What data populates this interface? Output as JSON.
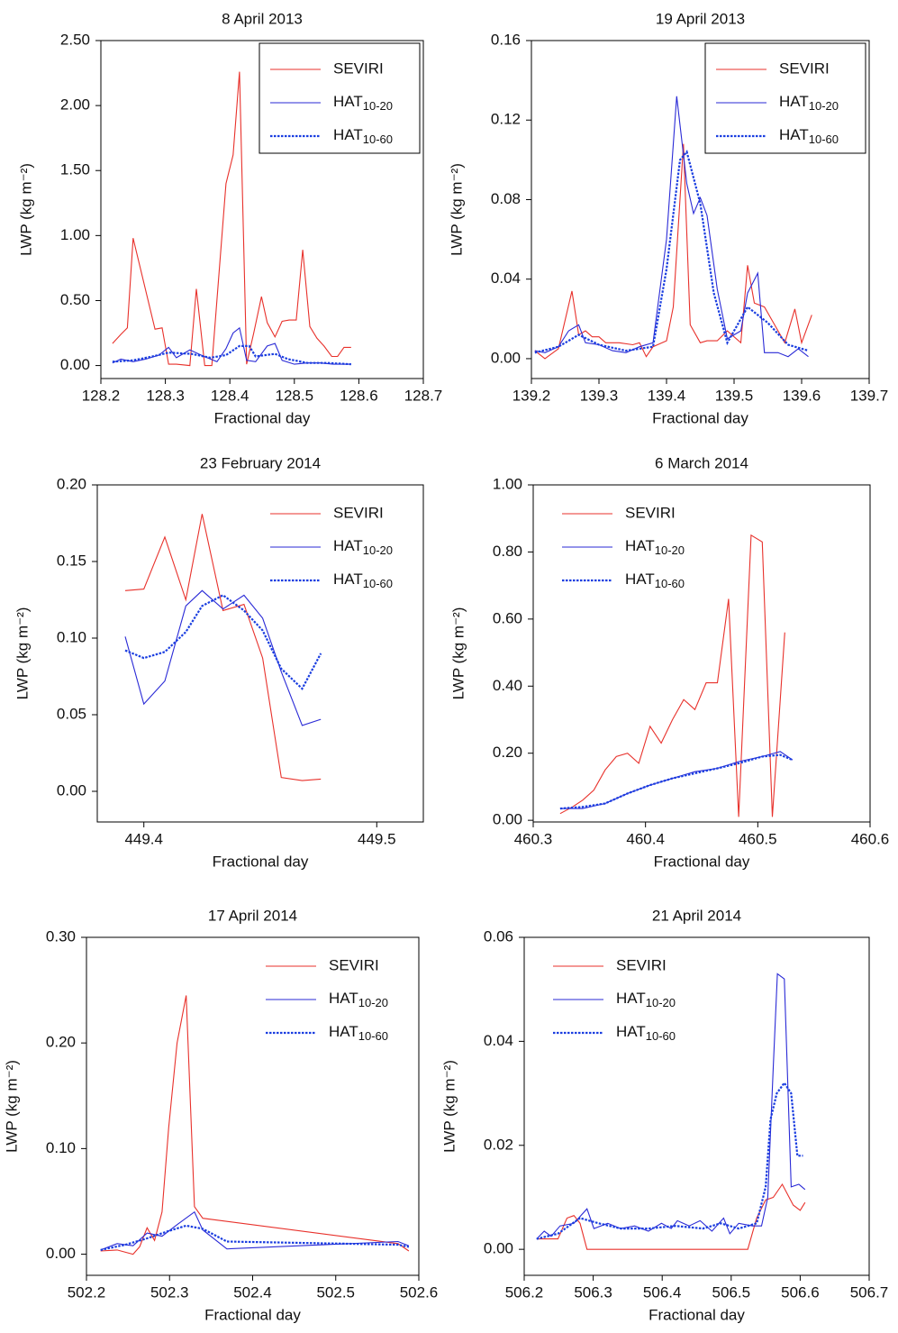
{
  "chart_data": [
    {
      "type": "line",
      "title": "8 April 2013",
      "xlabel": "Fractional day",
      "ylabel": "LWP (kg m⁻²)",
      "xlim": [
        128.2,
        128.7
      ],
      "xticks": [
        128.2,
        128.3,
        128.4,
        128.5,
        128.6,
        128.7
      ],
      "ylim": [
        -0.1,
        2.5
      ],
      "yticks": [
        {
          "value": 0,
          "label": "0.00"
        },
        {
          "value": 0.5,
          "label": "0.50"
        },
        {
          "value": 1,
          "label": "1.00"
        },
        {
          "value": 1.5,
          "label": "1.50"
        },
        {
          "value": 2,
          "label": "2.00"
        },
        {
          "value": 2.5,
          "label": "2.50"
        }
      ],
      "legend": "upper right",
      "legend_frame": true,
      "series": [
        {
          "name": "SEVIRI",
          "color": "#e8312b",
          "line_style": "solid",
          "x": [
            128.218,
            128.231,
            128.241,
            128.25,
            128.284,
            128.295,
            128.305,
            128.317,
            128.338,
            128.348,
            128.361,
            128.372,
            128.394,
            128.405,
            128.415,
            128.426,
            128.437,
            128.449,
            128.458,
            128.47,
            128.481,
            128.492,
            128.503,
            128.513,
            128.524,
            128.535,
            128.546,
            128.558,
            128.567,
            128.577,
            128.588
          ],
          "values": [
            0.17,
            0.24,
            0.29,
            0.98,
            0.28,
            0.29,
            0.01,
            0.01,
            0.0,
            0.59,
            0.0,
            0.0,
            1.4,
            1.62,
            2.26,
            0.01,
            0.25,
            0.53,
            0.33,
            0.22,
            0.34,
            0.35,
            0.35,
            0.89,
            0.3,
            0.21,
            0.15,
            0.07,
            0.07,
            0.14,
            0.14
          ]
        },
        {
          "name": "HAT10-20",
          "color": "#2a2ad6",
          "line_style": "solid",
          "x": [
            128.218,
            128.231,
            128.25,
            128.27,
            128.29,
            128.305,
            128.317,
            128.338,
            128.36,
            128.38,
            128.394,
            128.405,
            128.415,
            128.426,
            128.44,
            128.458,
            128.47,
            128.481,
            128.5,
            128.52,
            128.54,
            128.56,
            128.588
          ],
          "values": [
            0.02,
            0.05,
            0.03,
            0.05,
            0.08,
            0.14,
            0.06,
            0.12,
            0.07,
            0.03,
            0.13,
            0.25,
            0.29,
            0.04,
            0.03,
            0.15,
            0.17,
            0.04,
            0.01,
            0.02,
            0.02,
            0.01,
            0.01
          ]
        },
        {
          "name": "HAT10-60",
          "color": "#1a3ee0",
          "line_style": "dotted",
          "x": [
            128.218,
            128.25,
            128.28,
            128.305,
            128.34,
            128.37,
            128.394,
            128.415,
            128.43,
            128.44,
            128.47,
            128.49,
            128.52,
            128.55,
            128.588
          ],
          "values": [
            0.03,
            0.04,
            0.07,
            0.1,
            0.09,
            0.06,
            0.08,
            0.15,
            0.15,
            0.07,
            0.09,
            0.05,
            0.02,
            0.02,
            0.01
          ]
        }
      ]
    },
    {
      "type": "line",
      "title": "19 April 2013",
      "xlabel": "Fractional day",
      "ylabel": "LWP (kg m⁻²)",
      "xlim": [
        139.2,
        139.7
      ],
      "xticks": [
        139.2,
        139.3,
        139.4,
        139.5,
        139.6,
        139.7
      ],
      "ylim": [
        -0.01,
        0.16
      ],
      "yticks": [
        {
          "value": 0,
          "label": "0.00"
        },
        0.04,
        0.08,
        0.12,
        0.16
      ],
      "legend": "upper right",
      "legend_frame": true,
      "series": [
        {
          "name": "SEVIRI",
          "color": "#e8312b",
          "line_style": "solid",
          "x": [
            139.205,
            139.22,
            139.24,
            139.26,
            139.27,
            139.28,
            139.29,
            139.3,
            139.31,
            139.33,
            139.35,
            139.36,
            139.37,
            139.38,
            139.4,
            139.41,
            139.425,
            139.435,
            139.45,
            139.46,
            139.475,
            139.49,
            139.51,
            139.52,
            139.53,
            139.545,
            139.56,
            139.575,
            139.59,
            139.6,
            139.615
          ],
          "values": [
            0.004,
            0.0,
            0.005,
            0.034,
            0.012,
            0.014,
            0.011,
            0.011,
            0.008,
            0.008,
            0.007,
            0.008,
            0.001,
            0.006,
            0.009,
            0.026,
            0.108,
            0.017,
            0.008,
            0.009,
            0.009,
            0.014,
            0.008,
            0.047,
            0.028,
            0.026,
            0.017,
            0.008,
            0.025,
            0.008,
            0.022
          ]
        },
        {
          "name": "HAT10-20",
          "color": "#2a2ad6",
          "line_style": "solid",
          "x": [
            139.205,
            139.22,
            139.24,
            139.255,
            139.27,
            139.28,
            139.3,
            139.32,
            139.34,
            139.36,
            139.38,
            139.4,
            139.415,
            139.43,
            139.44,
            139.45,
            139.46,
            139.475,
            139.49,
            139.51,
            139.52,
            139.535,
            139.545,
            139.565,
            139.58,
            139.595,
            139.61
          ],
          "values": [
            0.004,
            0.003,
            0.006,
            0.014,
            0.017,
            0.008,
            0.007,
            0.004,
            0.003,
            0.006,
            0.008,
            0.06,
            0.132,
            0.088,
            0.073,
            0.081,
            0.072,
            0.035,
            0.01,
            0.014,
            0.033,
            0.043,
            0.003,
            0.003,
            0.001,
            0.005,
            0.001
          ]
        },
        {
          "name": "HAT10-60",
          "color": "#1a3ee0",
          "line_style": "dotted",
          "x": [
            139.205,
            139.24,
            139.27,
            139.3,
            139.34,
            139.38,
            139.4,
            139.42,
            139.43,
            139.45,
            139.47,
            139.49,
            139.5,
            139.52,
            139.55,
            139.58,
            139.61
          ],
          "values": [
            0.003,
            0.006,
            0.012,
            0.007,
            0.004,
            0.006,
            0.045,
            0.1,
            0.104,
            0.078,
            0.033,
            0.008,
            0.014,
            0.026,
            0.018,
            0.007,
            0.004
          ]
        }
      ]
    },
    {
      "type": "line",
      "title": "23 February 2014",
      "xlabel": "Fractional day",
      "ylabel": "LWP (kg m⁻²)",
      "xlim": [
        449.38,
        449.52
      ],
      "xticks": [
        449.4,
        449.5
      ],
      "ylim": [
        -0.02,
        0.2
      ],
      "yticks": [
        {
          "value": 0,
          "label": "0.00"
        },
        0.05,
        {
          "value": 0.1,
          "label": "0.10"
        },
        0.15,
        {
          "value": 0.2,
          "label": "0.20"
        }
      ],
      "legend": "upper right",
      "legend_frame": false,
      "series": [
        {
          "name": "SEVIRI",
          "color": "#e8312b",
          "line_style": "solid",
          "x": [
            449.392,
            449.4,
            449.409,
            449.418,
            449.425,
            449.434,
            449.443,
            449.451,
            449.459,
            449.468,
            449.476
          ],
          "values": [
            0.131,
            0.132,
            0.166,
            0.125,
            0.181,
            0.118,
            0.122,
            0.087,
            0.009,
            0.007,
            0.008
          ]
        },
        {
          "name": "HAT10-20",
          "color": "#2a2ad6",
          "line_style": "solid",
          "x": [
            449.392,
            449.4,
            449.409,
            449.418,
            449.425,
            449.434,
            449.443,
            449.451,
            449.459,
            449.468,
            449.476
          ],
          "values": [
            0.101,
            0.057,
            0.072,
            0.121,
            0.131,
            0.119,
            0.128,
            0.113,
            0.078,
            0.043,
            0.047
          ]
        },
        {
          "name": "HAT10-60",
          "color": "#1a3ee0",
          "line_style": "dotted",
          "x": [
            449.392,
            449.4,
            449.409,
            449.418,
            449.425,
            449.434,
            449.443,
            449.451,
            449.459,
            449.468,
            449.476
          ],
          "values": [
            0.092,
            0.087,
            0.091,
            0.104,
            0.121,
            0.128,
            0.118,
            0.105,
            0.08,
            0.067,
            0.09
          ]
        }
      ]
    },
    {
      "type": "line",
      "title": "6 March 2014",
      "xlabel": "Fractional day",
      "ylabel": "LWP (kg m⁻²)",
      "xlim": [
        460.3,
        460.6
      ],
      "xticks": [
        460.3,
        460.4,
        460.5,
        460.6
      ],
      "ylim": [
        -0.005,
        1.0
      ],
      "yticks": [
        {
          "value": 0,
          "label": "0.00"
        },
        {
          "value": 0.2,
          "label": "0.20"
        },
        {
          "value": 0.4,
          "label": "0.40"
        },
        {
          "value": 0.6,
          "label": "0.60"
        },
        {
          "value": 0.8,
          "label": "0.80"
        },
        {
          "value": 1,
          "label": "1.00"
        }
      ],
      "legend": "upper left",
      "legend_frame": false,
      "series": [
        {
          "name": "SEVIRI",
          "color": "#e8312b",
          "line_style": "solid",
          "x": [
            460.324,
            460.335,
            460.344,
            460.354,
            460.364,
            460.374,
            460.384,
            460.394,
            460.404,
            460.414,
            460.424,
            460.434,
            460.444,
            460.454,
            460.464,
            460.474,
            460.483,
            460.494,
            460.504,
            460.513,
            460.524
          ],
          "values": [
            0.02,
            0.04,
            0.06,
            0.09,
            0.15,
            0.19,
            0.2,
            0.17,
            0.28,
            0.23,
            0.3,
            0.36,
            0.33,
            0.41,
            0.41,
            0.66,
            0.01,
            0.85,
            0.83,
            0.01,
            0.56
          ]
        },
        {
          "name": "HAT10-20",
          "color": "#2a2ad6",
          "line_style": "solid",
          "x": [
            460.324,
            460.344,
            460.364,
            460.384,
            460.404,
            460.424,
            460.444,
            460.464,
            460.483,
            460.504,
            460.52,
            460.531
          ],
          "values": [
            0.035,
            0.035,
            0.05,
            0.08,
            0.105,
            0.125,
            0.145,
            0.155,
            0.175,
            0.19,
            0.205,
            0.18
          ]
        },
        {
          "name": "HAT10-60",
          "color": "#1a3ee0",
          "line_style": "dotted",
          "x": [
            460.324,
            460.344,
            460.364,
            460.384,
            460.404,
            460.424,
            460.444,
            460.464,
            460.483,
            460.504,
            460.52,
            460.531
          ],
          "values": [
            0.035,
            0.04,
            0.05,
            0.08,
            0.105,
            0.125,
            0.14,
            0.155,
            0.17,
            0.19,
            0.195,
            0.18
          ]
        }
      ]
    },
    {
      "type": "line",
      "title": "17 April 2014",
      "xlabel": "Fractional day",
      "ylabel": "LWP (kg m⁻²)",
      "xlim": [
        502.2,
        502.6
      ],
      "xticks": [
        502.2,
        502.3,
        502.4,
        502.5,
        502.6
      ],
      "ylim": [
        -0.02,
        0.3
      ],
      "yticks": [
        {
          "value": 0,
          "label": "0.00"
        },
        {
          "value": 0.1,
          "label": "0.10"
        },
        {
          "value": 0.2,
          "label": "0.20"
        },
        {
          "value": 0.3,
          "label": "0.30"
        }
      ],
      "legend": "upper right",
      "legend_frame": false,
      "series": [
        {
          "name": "SEVIRI",
          "color": "#e8312b",
          "line_style": "solid",
          "x": [
            502.217,
            502.237,
            502.256,
            502.264,
            502.273,
            502.282,
            502.291,
            502.299,
            502.309,
            502.32,
            502.33,
            502.34,
            502.575,
            502.588
          ],
          "values": [
            0.003,
            0.004,
            0.0,
            0.007,
            0.025,
            0.013,
            0.04,
            0.12,
            0.2,
            0.245,
            0.045,
            0.034,
            0.01,
            0.003
          ]
        },
        {
          "name": "HAT10-20",
          "color": "#2a2ad6",
          "line_style": "solid",
          "x": [
            502.217,
            502.237,
            502.256,
            502.273,
            502.291,
            502.309,
            502.33,
            502.34,
            502.369,
            502.575,
            502.588
          ],
          "values": [
            0.004,
            0.01,
            0.008,
            0.02,
            0.017,
            0.028,
            0.04,
            0.023,
            0.005,
            0.012,
            0.008
          ]
        },
        {
          "name": "HAT10-60",
          "color": "#1a3ee0",
          "line_style": "dotted",
          "x": [
            502.217,
            502.247,
            502.273,
            502.299,
            502.32,
            502.34,
            502.369,
            502.575,
            502.588
          ],
          "values": [
            0.004,
            0.009,
            0.015,
            0.022,
            0.027,
            0.024,
            0.012,
            0.009,
            0.007
          ]
        }
      ]
    },
    {
      "type": "line",
      "title": "21 April 2014",
      "xlabel": "Fractional day",
      "ylabel": "LWP (kg m⁻²)",
      "xlim": [
        506.2,
        506.7
      ],
      "xticks": [
        506.2,
        506.3,
        506.4,
        506.5,
        506.6,
        506.7
      ],
      "ylim": [
        -0.005,
        0.06
      ],
      "yticks": [
        {
          "value": 0,
          "label": "0.00"
        },
        0.02,
        0.04,
        0.06
      ],
      "legend": "upper left",
      "legend_frame": false,
      "series": [
        {
          "name": "SEVIRI",
          "color": "#e8312b",
          "line_style": "solid",
          "x": [
            506.218,
            506.249,
            506.262,
            506.272,
            506.281,
            506.291,
            506.524,
            506.537,
            506.55,
            506.561,
            506.574,
            506.59,
            506.6,
            506.607
          ],
          "values": [
            0.002,
            0.002,
            0.006,
            0.0065,
            0.005,
            0.0,
            0.0,
            0.006,
            0.0095,
            0.01,
            0.0125,
            0.0085,
            0.0075,
            0.009
          ]
        },
        {
          "name": "HAT10-20",
          "color": "#2a2ad6",
          "line_style": "solid",
          "x": [
            506.218,
            506.229,
            506.239,
            506.252,
            506.272,
            506.291,
            506.301,
            506.321,
            506.34,
            506.36,
            506.38,
            506.399,
            506.413,
            506.422,
            506.439,
            506.455,
            506.472,
            506.489,
            506.498,
            506.511,
            506.531,
            506.544,
            506.553,
            506.561,
            506.567,
            506.577,
            506.587,
            506.598,
            506.607
          ],
          "values": [
            0.002,
            0.0035,
            0.0025,
            0.0045,
            0.005,
            0.0078,
            0.004,
            0.005,
            0.004,
            0.0045,
            0.0035,
            0.005,
            0.004,
            0.0055,
            0.0045,
            0.0055,
            0.0035,
            0.006,
            0.003,
            0.005,
            0.0045,
            0.0045,
            0.01,
            0.035,
            0.053,
            0.052,
            0.012,
            0.0125,
            0.0115
          ]
        },
        {
          "name": "HAT10-60",
          "color": "#1a3ee0",
          "line_style": "dotted",
          "x": [
            506.218,
            506.249,
            506.281,
            506.308,
            506.34,
            506.38,
            506.419,
            506.459,
            506.485,
            506.511,
            506.537,
            506.55,
            506.557,
            506.566,
            506.577,
            506.587,
            506.596,
            506.604
          ],
          "values": [
            0.002,
            0.003,
            0.006,
            0.005,
            0.004,
            0.004,
            0.0045,
            0.004,
            0.005,
            0.004,
            0.005,
            0.012,
            0.025,
            0.03,
            0.032,
            0.03,
            0.018,
            0.018
          ]
        }
      ]
    }
  ]
}
